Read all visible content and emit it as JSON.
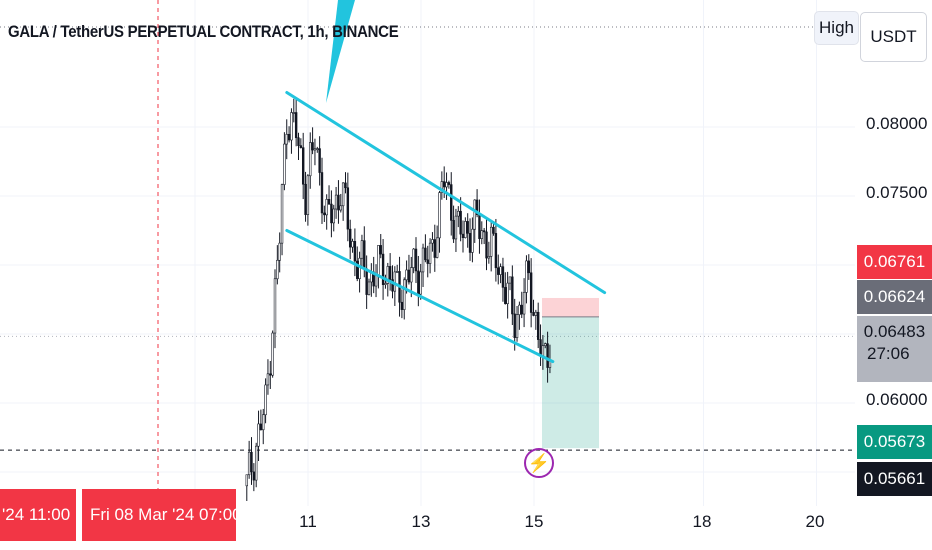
{
  "header": {
    "title": "GALA / TetherUS PERPETUAL CONTRACT, 1h, BINANCE"
  },
  "toolbar": {
    "high_label": "High",
    "currency_label": "USDT"
  },
  "price_axis": {
    "ticks": [
      "0.08000",
      "0.07500",
      "0.06000"
    ],
    "labels": {
      "stop": {
        "value": "0.06761",
        "color": "#f23645"
      },
      "entry": {
        "value": "0.06624",
        "color": "#6a6d78"
      },
      "last": {
        "value": "0.06483",
        "countdown": "27:06",
        "color": "#b2b5be"
      },
      "target": {
        "value": "0.05673",
        "color": "#089981"
      },
      "low": {
        "value": "0.05661",
        "color": "#131722"
      }
    }
  },
  "time_axis": {
    "ticks": [
      "11",
      "13",
      "15",
      "18",
      "20"
    ],
    "crosshair_label_left": "'24   11:00",
    "crosshair_label": "Fri 08 Mar '24   07:00"
  },
  "chart_data": {
    "type": "candlestick",
    "title": "GALA / TetherUS PERPETUAL CONTRACT, 1h, BINANCE",
    "interval": "1h",
    "ylabel": "USDT",
    "y_ticks": [
      0.06,
      0.075,
      0.08
    ],
    "x_ticks": [
      "11",
      "13",
      "15",
      "18",
      "20"
    ],
    "price_path_approx": [
      {
        "t": "Mar 9 22:00",
        "p": 0.054
      },
      {
        "t": "Mar 10 02:00",
        "p": 0.057
      },
      {
        "t": "Mar 10 06:00",
        "p": 0.0598
      },
      {
        "t": "Mar 10 09:00",
        "p": 0.066
      },
      {
        "t": "Mar 10 12:00",
        "p": 0.072
      },
      {
        "t": "Mar 10 15:00",
        "p": 0.081
      },
      {
        "t": "Mar 10 19:00",
        "p": 0.0795
      },
      {
        "t": "Mar 10 23:00",
        "p": 0.0755
      },
      {
        "t": "Mar 11 03:00",
        "p": 0.079
      },
      {
        "t": "Mar 11 08:00",
        "p": 0.073
      },
      {
        "t": "Mar 11 14:00",
        "p": 0.0755
      },
      {
        "t": "Mar 11 20:00",
        "p": 0.0705
      },
      {
        "t": "Mar 12 02:00",
        "p": 0.069
      },
      {
        "t": "Mar 12 08:00",
        "p": 0.07
      },
      {
        "t": "Mar 12 14:00",
        "p": 0.068
      },
      {
        "t": "Mar 12 20:00",
        "p": 0.0695
      },
      {
        "t": "Mar 13 04:00",
        "p": 0.0705
      },
      {
        "t": "Mar 13 10:00",
        "p": 0.0762
      },
      {
        "t": "Mar 13 16:00",
        "p": 0.0722
      },
      {
        "t": "Mar 14 00:00",
        "p": 0.073
      },
      {
        "t": "Mar 14 08:00",
        "p": 0.0705
      },
      {
        "t": "Mar 14 16:00",
        "p": 0.066
      },
      {
        "t": "Mar 14 22:00",
        "p": 0.069
      },
      {
        "t": "Mar 15 04:00",
        "p": 0.0625
      },
      {
        "t": "Mar 15 07:00",
        "p": 0.0648
      }
    ],
    "channel": {
      "upper": [
        {
          "t": "Mar 10 15:00",
          "p": 0.0825
        },
        {
          "t": "Mar 16 06:00",
          "p": 0.068
        }
      ],
      "lower": [
        {
          "t": "Mar 10 15:00",
          "p": 0.0725
        },
        {
          "t": "Mar 15 08:00",
          "p": 0.063
        }
      ]
    },
    "position": {
      "type": "short",
      "entry": 0.06624,
      "stop": 0.06761,
      "target": 0.05673,
      "last": 0.06483
    },
    "crosshair_time": "Fri 08 Mar '24 07:00",
    "grid": true
  }
}
